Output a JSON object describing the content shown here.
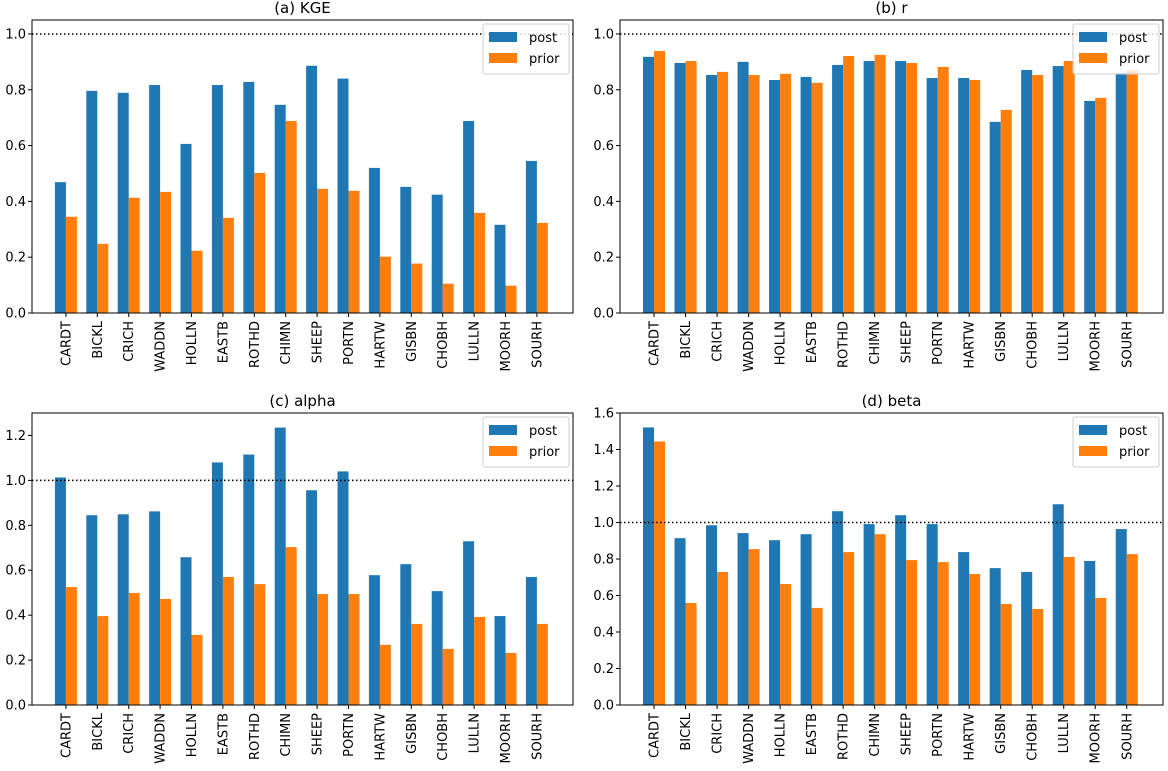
{
  "chart_data": [
    {
      "type": "bar",
      "title": "(a) KGE",
      "xlabel": "",
      "ylabel": "",
      "ylim": [
        0,
        1.05
      ],
      "yticks": [
        0.0,
        0.2,
        0.4,
        0.6,
        0.8,
        1.0
      ],
      "ytick_labels": [
        "0.0",
        "0.2",
        "0.4",
        "0.6",
        "0.8",
        "1.0"
      ],
      "reference_line": 1.0,
      "legend": "top-right",
      "categories": [
        "CARDT",
        "BICKL",
        "CRICH",
        "WADDN",
        "HOLLN",
        "EASTB",
        "ROTHD",
        "CHIMN",
        "SHEEP",
        "PORTN",
        "HARTW",
        "GISBN",
        "CHOBH",
        "LULLN",
        "MOORH",
        "SOURH"
      ],
      "series": [
        {
          "name": "post",
          "color": "#1f77b4",
          "values": [
            0.469,
            0.796,
            0.789,
            0.817,
            0.606,
            0.817,
            0.828,
            0.746,
            0.886,
            0.84,
            0.52,
            0.452,
            0.424,
            0.688,
            0.316,
            0.545
          ]
        },
        {
          "name": "prior",
          "color": "#ff7f0e",
          "values": [
            0.345,
            0.248,
            0.413,
            0.434,
            0.223,
            0.341,
            0.502,
            0.688,
            0.445,
            0.438,
            0.202,
            0.177,
            0.105,
            0.359,
            0.098,
            0.323
          ]
        }
      ]
    },
    {
      "type": "bar",
      "title": "(b) r",
      "xlabel": "",
      "ylabel": "",
      "ylim": [
        0,
        1.05
      ],
      "yticks": [
        0.0,
        0.2,
        0.4,
        0.6,
        0.8,
        1.0
      ],
      "ytick_labels": [
        "0.0",
        "0.2",
        "0.4",
        "0.6",
        "0.8",
        "1.0"
      ],
      "reference_line": 1.0,
      "legend": "top-right",
      "categories": [
        "CARDT",
        "BICKL",
        "CRICH",
        "WADDN",
        "HOLLN",
        "EASTB",
        "ROTHD",
        "CHIMN",
        "SHEEP",
        "PORTN",
        "HARTW",
        "GISBN",
        "CHOBH",
        "LULLN",
        "MOORH",
        "SOURH"
      ],
      "series": [
        {
          "name": "post",
          "color": "#1f77b4",
          "values": [
            0.918,
            0.896,
            0.853,
            0.9,
            0.835,
            0.846,
            0.889,
            0.903,
            0.903,
            0.842,
            0.842,
            0.685,
            0.871,
            0.885,
            0.76,
            0.86
          ]
        },
        {
          "name": "prior",
          "color": "#ff7f0e",
          "values": [
            0.939,
            0.903,
            0.864,
            0.853,
            0.857,
            0.825,
            0.921,
            0.925,
            0.896,
            0.882,
            0.835,
            0.728,
            0.853,
            0.903,
            0.771,
            0.87
          ]
        }
      ]
    },
    {
      "type": "bar",
      "title": "(c) alpha",
      "xlabel": "",
      "ylabel": "",
      "ylim": [
        0,
        1.3
      ],
      "yticks": [
        0.0,
        0.2,
        0.4,
        0.6,
        0.8,
        1.0,
        1.2
      ],
      "ytick_labels": [
        "0.0",
        "0.2",
        "0.4",
        "0.6",
        "0.8",
        "1.0",
        "1.2"
      ],
      "reference_line": 1.0,
      "legend": "top-right",
      "categories": [
        "CARDT",
        "BICKL",
        "CRICH",
        "WADDN",
        "HOLLN",
        "EASTB",
        "ROTHD",
        "CHIMN",
        "SHEEP",
        "PORTN",
        "HARTW",
        "GISBN",
        "CHOBH",
        "LULLN",
        "MOORH",
        "SOURH"
      ],
      "series": [
        {
          "name": "post",
          "color": "#1f77b4",
          "values": [
            1.013,
            0.845,
            0.849,
            0.862,
            0.658,
            1.08,
            1.115,
            1.235,
            0.956,
            1.04,
            0.578,
            0.627,
            0.507,
            0.729,
            0.396,
            0.57
          ]
        },
        {
          "name": "prior",
          "color": "#ff7f0e",
          "values": [
            0.525,
            0.396,
            0.499,
            0.472,
            0.312,
            0.57,
            0.538,
            0.703,
            0.494,
            0.494,
            0.268,
            0.361,
            0.25,
            0.392,
            0.232,
            0.361
          ]
        }
      ]
    },
    {
      "type": "bar",
      "title": "(d) beta",
      "xlabel": "",
      "ylabel": "",
      "ylim": [
        0,
        1.6
      ],
      "yticks": [
        0.0,
        0.2,
        0.4,
        0.6,
        0.8,
        1.0,
        1.2,
        1.4,
        1.6
      ],
      "ytick_labels": [
        "0.0",
        "0.2",
        "0.4",
        "0.6",
        "0.8",
        "1.0",
        "1.2",
        "1.4",
        "1.6"
      ],
      "reference_line": 1.0,
      "legend": "top-right",
      "categories": [
        "CARDT",
        "BICKL",
        "CRICH",
        "WADDN",
        "HOLLN",
        "EASTB",
        "ROTHD",
        "CHIMN",
        "SHEEP",
        "PORTN",
        "HARTW",
        "GISBN",
        "CHOBH",
        "LULLN",
        "MOORH",
        "SOURH"
      ],
      "series": [
        {
          "name": "post",
          "color": "#1f77b4",
          "values": [
            1.521,
            0.914,
            0.985,
            0.942,
            0.903,
            0.936,
            1.062,
            0.991,
            1.04,
            0.991,
            0.838,
            0.75,
            0.729,
            1.1,
            0.789,
            0.964
          ]
        },
        {
          "name": "prior",
          "color": "#ff7f0e",
          "values": [
            1.444,
            0.559,
            0.729,
            0.854,
            0.663,
            0.532,
            0.838,
            0.936,
            0.794,
            0.783,
            0.718,
            0.554,
            0.526,
            0.811,
            0.587,
            0.827
          ]
        }
      ]
    }
  ]
}
